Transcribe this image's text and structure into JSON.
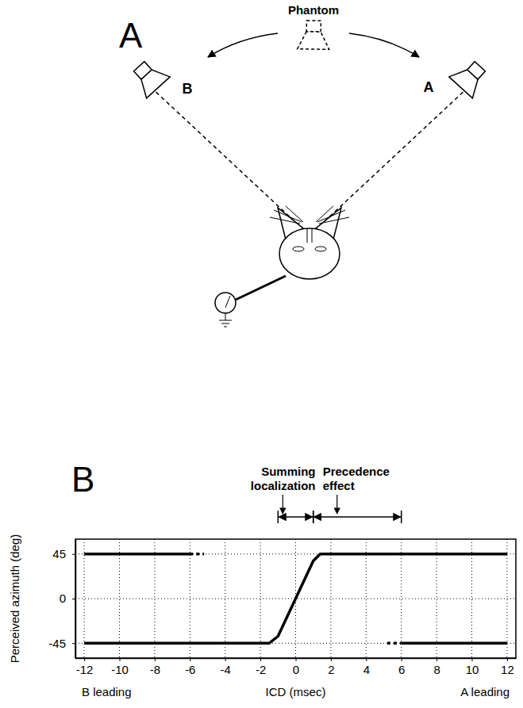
{
  "diagram": {
    "panel_label": "A",
    "phantom_label": "Phantom",
    "speakers": [
      {
        "label": "B"
      },
      {
        "label": "A"
      }
    ]
  },
  "chart_data": {
    "type": "line",
    "panel_label": "B",
    "y_label": "Perceived azimuth (deg)",
    "x_label": "ICD (msec)",
    "x_label_left": "B leading",
    "x_label_right": "A leading",
    "xlim": [
      -12.5,
      12.5
    ],
    "xticks": [
      -12,
      -10,
      -8,
      -6,
      -4,
      -2,
      0,
      2,
      4,
      6,
      8,
      10,
      12
    ],
    "ylim": [
      -60,
      60
    ],
    "yticks": [
      -45,
      0,
      45
    ],
    "grid": true,
    "annotations": [
      {
        "text": "Summing localization",
        "x_range": [
          -1,
          1
        ]
      },
      {
        "text": "Precedence effect",
        "x_range": [
          1,
          6
        ]
      }
    ],
    "series": [
      {
        "color": "#000000",
        "line_style": "solid",
        "x": [
          -12,
          -1.5,
          -1,
          0,
          1,
          1.4,
          12
        ],
        "values": [
          -45,
          -45,
          -38,
          0,
          38,
          45,
          45
        ]
      },
      {
        "color": "#000000",
        "line_style": "solid",
        "x": [
          -12,
          -6
        ],
        "values": [
          45,
          45
        ]
      },
      {
        "color": "#000000",
        "line_style": "dotted",
        "x": [
          -6,
          -5.2
        ],
        "values": [
          45,
          45
        ]
      },
      {
        "color": "#000000",
        "line_style": "dotted",
        "x": [
          5.2,
          6
        ],
        "values": [
          -45,
          -45
        ]
      },
      {
        "color": "#000000",
        "line_style": "solid",
        "x": [
          6,
          12
        ],
        "values": [
          -45,
          -45
        ]
      }
    ]
  }
}
